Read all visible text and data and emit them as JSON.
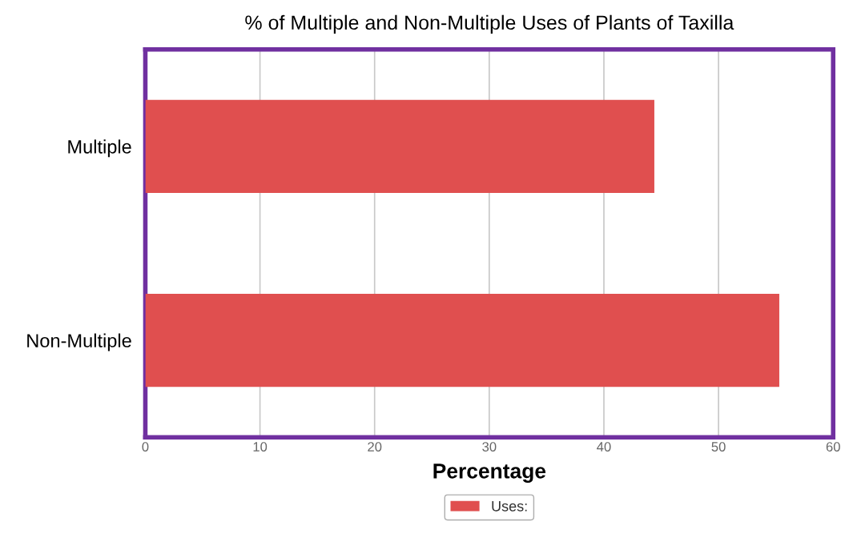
{
  "chart_data": {
    "type": "bar",
    "orientation": "horizontal",
    "title": "% of Multiple and Non-Multiple Uses of Plants of Taxilla",
    "xlabel": "Percentage",
    "categories": [
      "Multiple",
      "Non-Multiple"
    ],
    "series": [
      {
        "name": "Uses:",
        "color": "#e04f4f",
        "values": [
          44.4,
          55.3
        ]
      }
    ],
    "xlim": [
      0,
      60
    ],
    "xticks": [
      0,
      10,
      20,
      30,
      40,
      50,
      60
    ],
    "grid": "x",
    "legend": "bottom"
  }
}
